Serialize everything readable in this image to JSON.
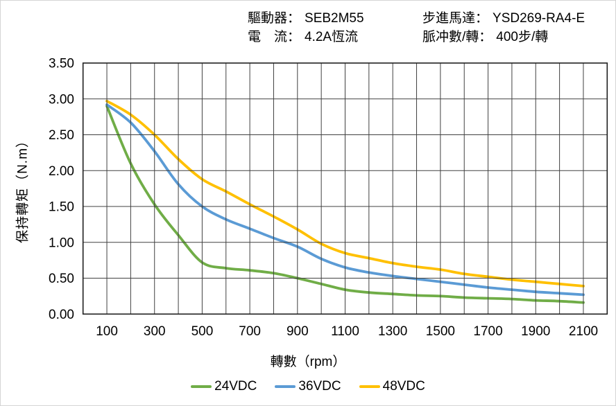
{
  "chart_data": {
    "type": "line",
    "title": "",
    "xlabel": "轉數（rpm）",
    "ylabel": "保持轉矩（N.m）",
    "annotations": [
      {
        "label": "驅動器：",
        "value": "SEB2M55"
      },
      {
        "label": "電　流：",
        "value": "4.2A恆流"
      },
      {
        "label": "步進馬達：",
        "value": "YSD269-RA4-E"
      },
      {
        "label": "脈冲數/轉：",
        "value": "400步/轉"
      }
    ],
    "x": [
      100,
      200,
      300,
      400,
      500,
      600,
      700,
      800,
      900,
      1000,
      1100,
      1200,
      1300,
      1400,
      1500,
      1600,
      1700,
      1800,
      1900,
      2000,
      2100
    ],
    "series": [
      {
        "name": "24VDC",
        "color": "#70AD47",
        "values": [
          2.9,
          2.1,
          1.53,
          1.1,
          0.72,
          0.64,
          0.61,
          0.57,
          0.5,
          0.42,
          0.34,
          0.3,
          0.28,
          0.26,
          0.25,
          0.23,
          0.22,
          0.21,
          0.19,
          0.18,
          0.16
        ]
      },
      {
        "name": "36VDC",
        "color": "#5B9BD5",
        "values": [
          2.92,
          2.67,
          2.27,
          1.81,
          1.5,
          1.32,
          1.19,
          1.06,
          0.94,
          0.77,
          0.65,
          0.58,
          0.53,
          0.49,
          0.45,
          0.41,
          0.37,
          0.34,
          0.31,
          0.29,
          0.27
        ]
      },
      {
        "name": "48VDC",
        "color": "#FFC000",
        "values": [
          2.97,
          2.78,
          2.5,
          2.16,
          1.88,
          1.71,
          1.53,
          1.36,
          1.18,
          0.98,
          0.85,
          0.78,
          0.71,
          0.66,
          0.62,
          0.56,
          0.52,
          0.48,
          0.45,
          0.42,
          0.39
        ]
      }
    ],
    "xlim": [
      0,
      2200
    ],
    "ylim": [
      0,
      3.5
    ],
    "x_tick_labels": [
      100,
      300,
      500,
      700,
      900,
      1100,
      1300,
      1500,
      1700,
      1900,
      2100
    ],
    "y_tick_labels": [
      "0.00",
      "0.50",
      "1.00",
      "1.50",
      "2.00",
      "2.50",
      "3.00",
      "3.50"
    ],
    "x_grid_step": 100,
    "y_grid_step": 0.5,
    "grid": true,
    "grid_on_top": true,
    "legend_position": "bottom",
    "colors": {
      "grid": "#404040",
      "border": "#1f1f1f",
      "text": "#000000",
      "background": "#ffffff"
    }
  }
}
